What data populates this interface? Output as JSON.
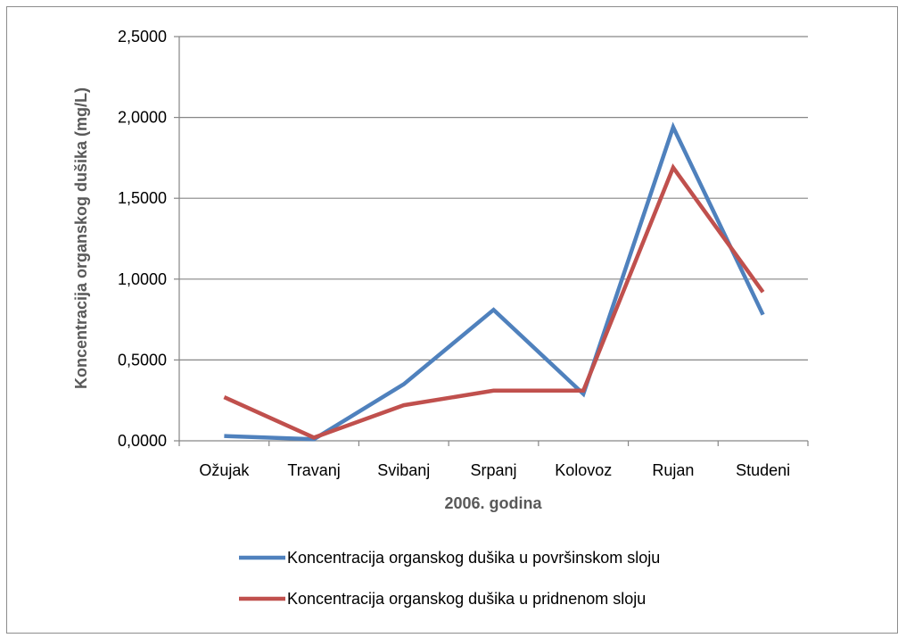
{
  "chart_data": {
    "type": "line",
    "title": "",
    "xlabel": "2006. godina",
    "ylabel": "Koncentracija organskog dušika (mg/L)",
    "categories": [
      "Ožujak",
      "Travanj",
      "Svibanj",
      "Srpanj",
      "Kolovoz",
      "Rujan",
      "Studeni"
    ],
    "y_ticks": [
      "0,0000",
      "0,5000",
      "1,0000",
      "1,5000",
      "2,0000",
      "2,5000"
    ],
    "ylim": [
      0,
      2.5
    ],
    "grid": "horizontal",
    "legend_position": "bottom",
    "series": [
      {
        "name": "Koncentracija organskog dušika u površinskom sloju",
        "color": "#4f81bd",
        "values": [
          0.03,
          0.01,
          0.35,
          0.81,
          0.29,
          1.94,
          0.78
        ]
      },
      {
        "name": "Koncentracija organskog dušika u pridnenom sloju",
        "color": "#c0504d",
        "values": [
          0.27,
          0.02,
          0.22,
          0.31,
          0.31,
          1.69,
          0.92
        ]
      }
    ]
  }
}
